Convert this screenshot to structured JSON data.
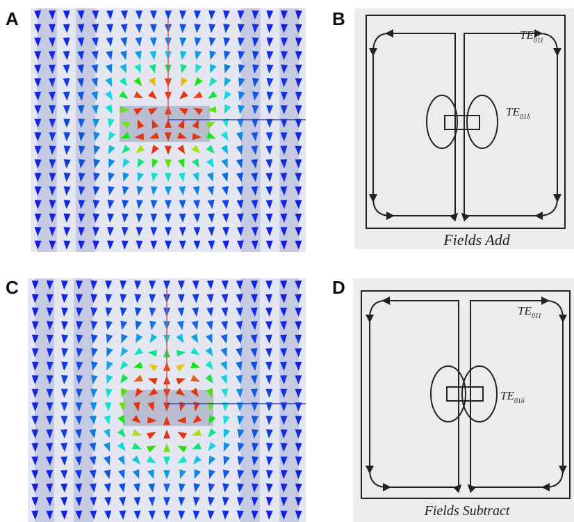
{
  "panels": [
    {
      "label": "A"
    },
    {
      "label": "B",
      "modes": [
        {
          "main": "TE",
          "sub": "011"
        },
        {
          "main": "TE",
          "sub": "01δ"
        }
      ],
      "caption": "Fields Add"
    },
    {
      "label": "C"
    },
    {
      "label": "D",
      "modes": [
        {
          "main": "TE",
          "sub": "011"
        },
        {
          "main": "TE",
          "sub": "01δ"
        }
      ],
      "caption": "Fields Subtract"
    }
  ]
}
